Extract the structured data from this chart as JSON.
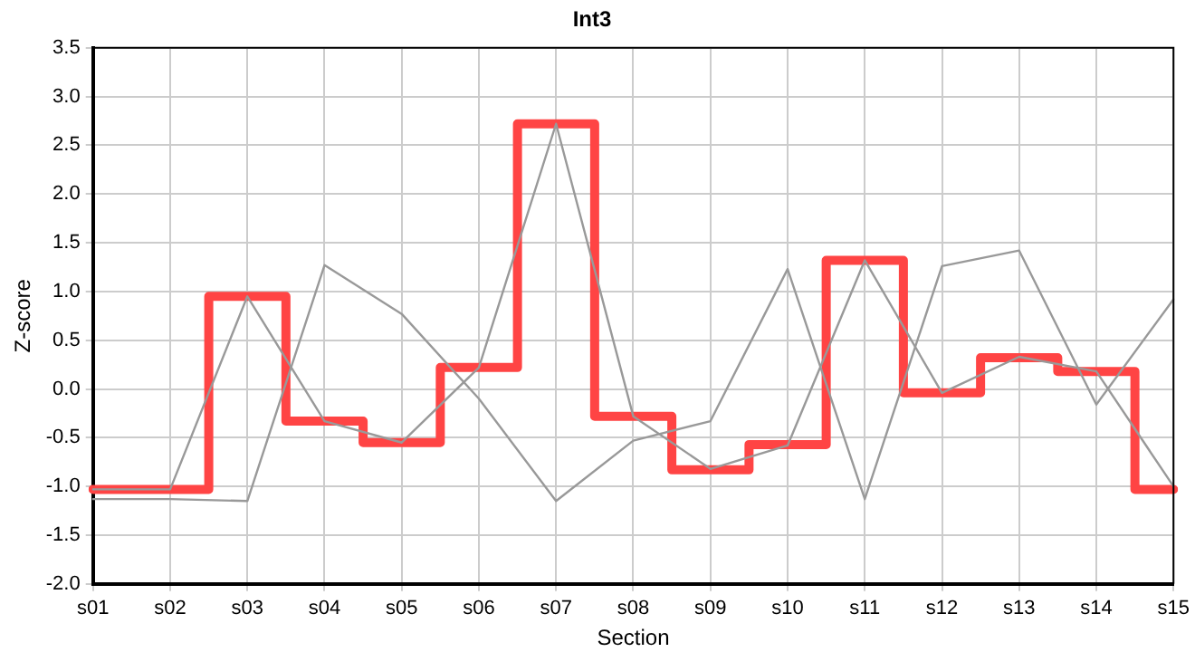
{
  "chart_data": {
    "type": "line",
    "title": "Int3",
    "xlabel": "Section",
    "ylabel": "Z-score",
    "categories": [
      "s01",
      "s02",
      "s03",
      "s04",
      "s05",
      "s06",
      "s07",
      "s08",
      "s09",
      "s10",
      "s11",
      "s12",
      "s13",
      "s14",
      "s15"
    ],
    "series": [
      {
        "type": "line",
        "color": "#999999",
        "values": [
          -1.13,
          -1.13,
          -1.15,
          1.27,
          0.77,
          -0.1,
          -1.15,
          -0.53,
          -0.33,
          1.23,
          -1.13,
          1.26,
          1.42,
          -0.16,
          0.92
        ]
      },
      {
        "type": "line",
        "color": "#999999",
        "values": [
          -1.03,
          -1.03,
          0.95,
          -0.33,
          -0.55,
          0.22,
          2.72,
          -0.28,
          -0.82,
          -0.58,
          1.32,
          -0.04,
          0.33,
          0.18,
          -1.0
        ]
      },
      {
        "type": "step",
        "color": "#ff4444",
        "values": [
          -1.03,
          -1.03,
          0.95,
          -0.33,
          -0.55,
          0.22,
          2.72,
          -0.28,
          -0.83,
          -0.57,
          1.32,
          -0.04,
          0.32,
          0.18,
          -1.03
        ]
      }
    ],
    "ylim": [
      -2,
      3.5
    ],
    "yticks": [
      {
        "value": -2,
        "label": "-2.0"
      },
      -1.5,
      {
        "value": -1,
        "label": "-1.0"
      },
      -0.5,
      {
        "value": 0,
        "label": "0.0"
      },
      0.5,
      {
        "value": 1,
        "label": "1.0"
      },
      1.5,
      {
        "value": 2,
        "label": "2.0"
      },
      2.5,
      {
        "value": 3,
        "label": "3.0"
      },
      3.5
    ],
    "grid": true,
    "legend": false,
    "marker": "none",
    "line_style": "solid"
  }
}
